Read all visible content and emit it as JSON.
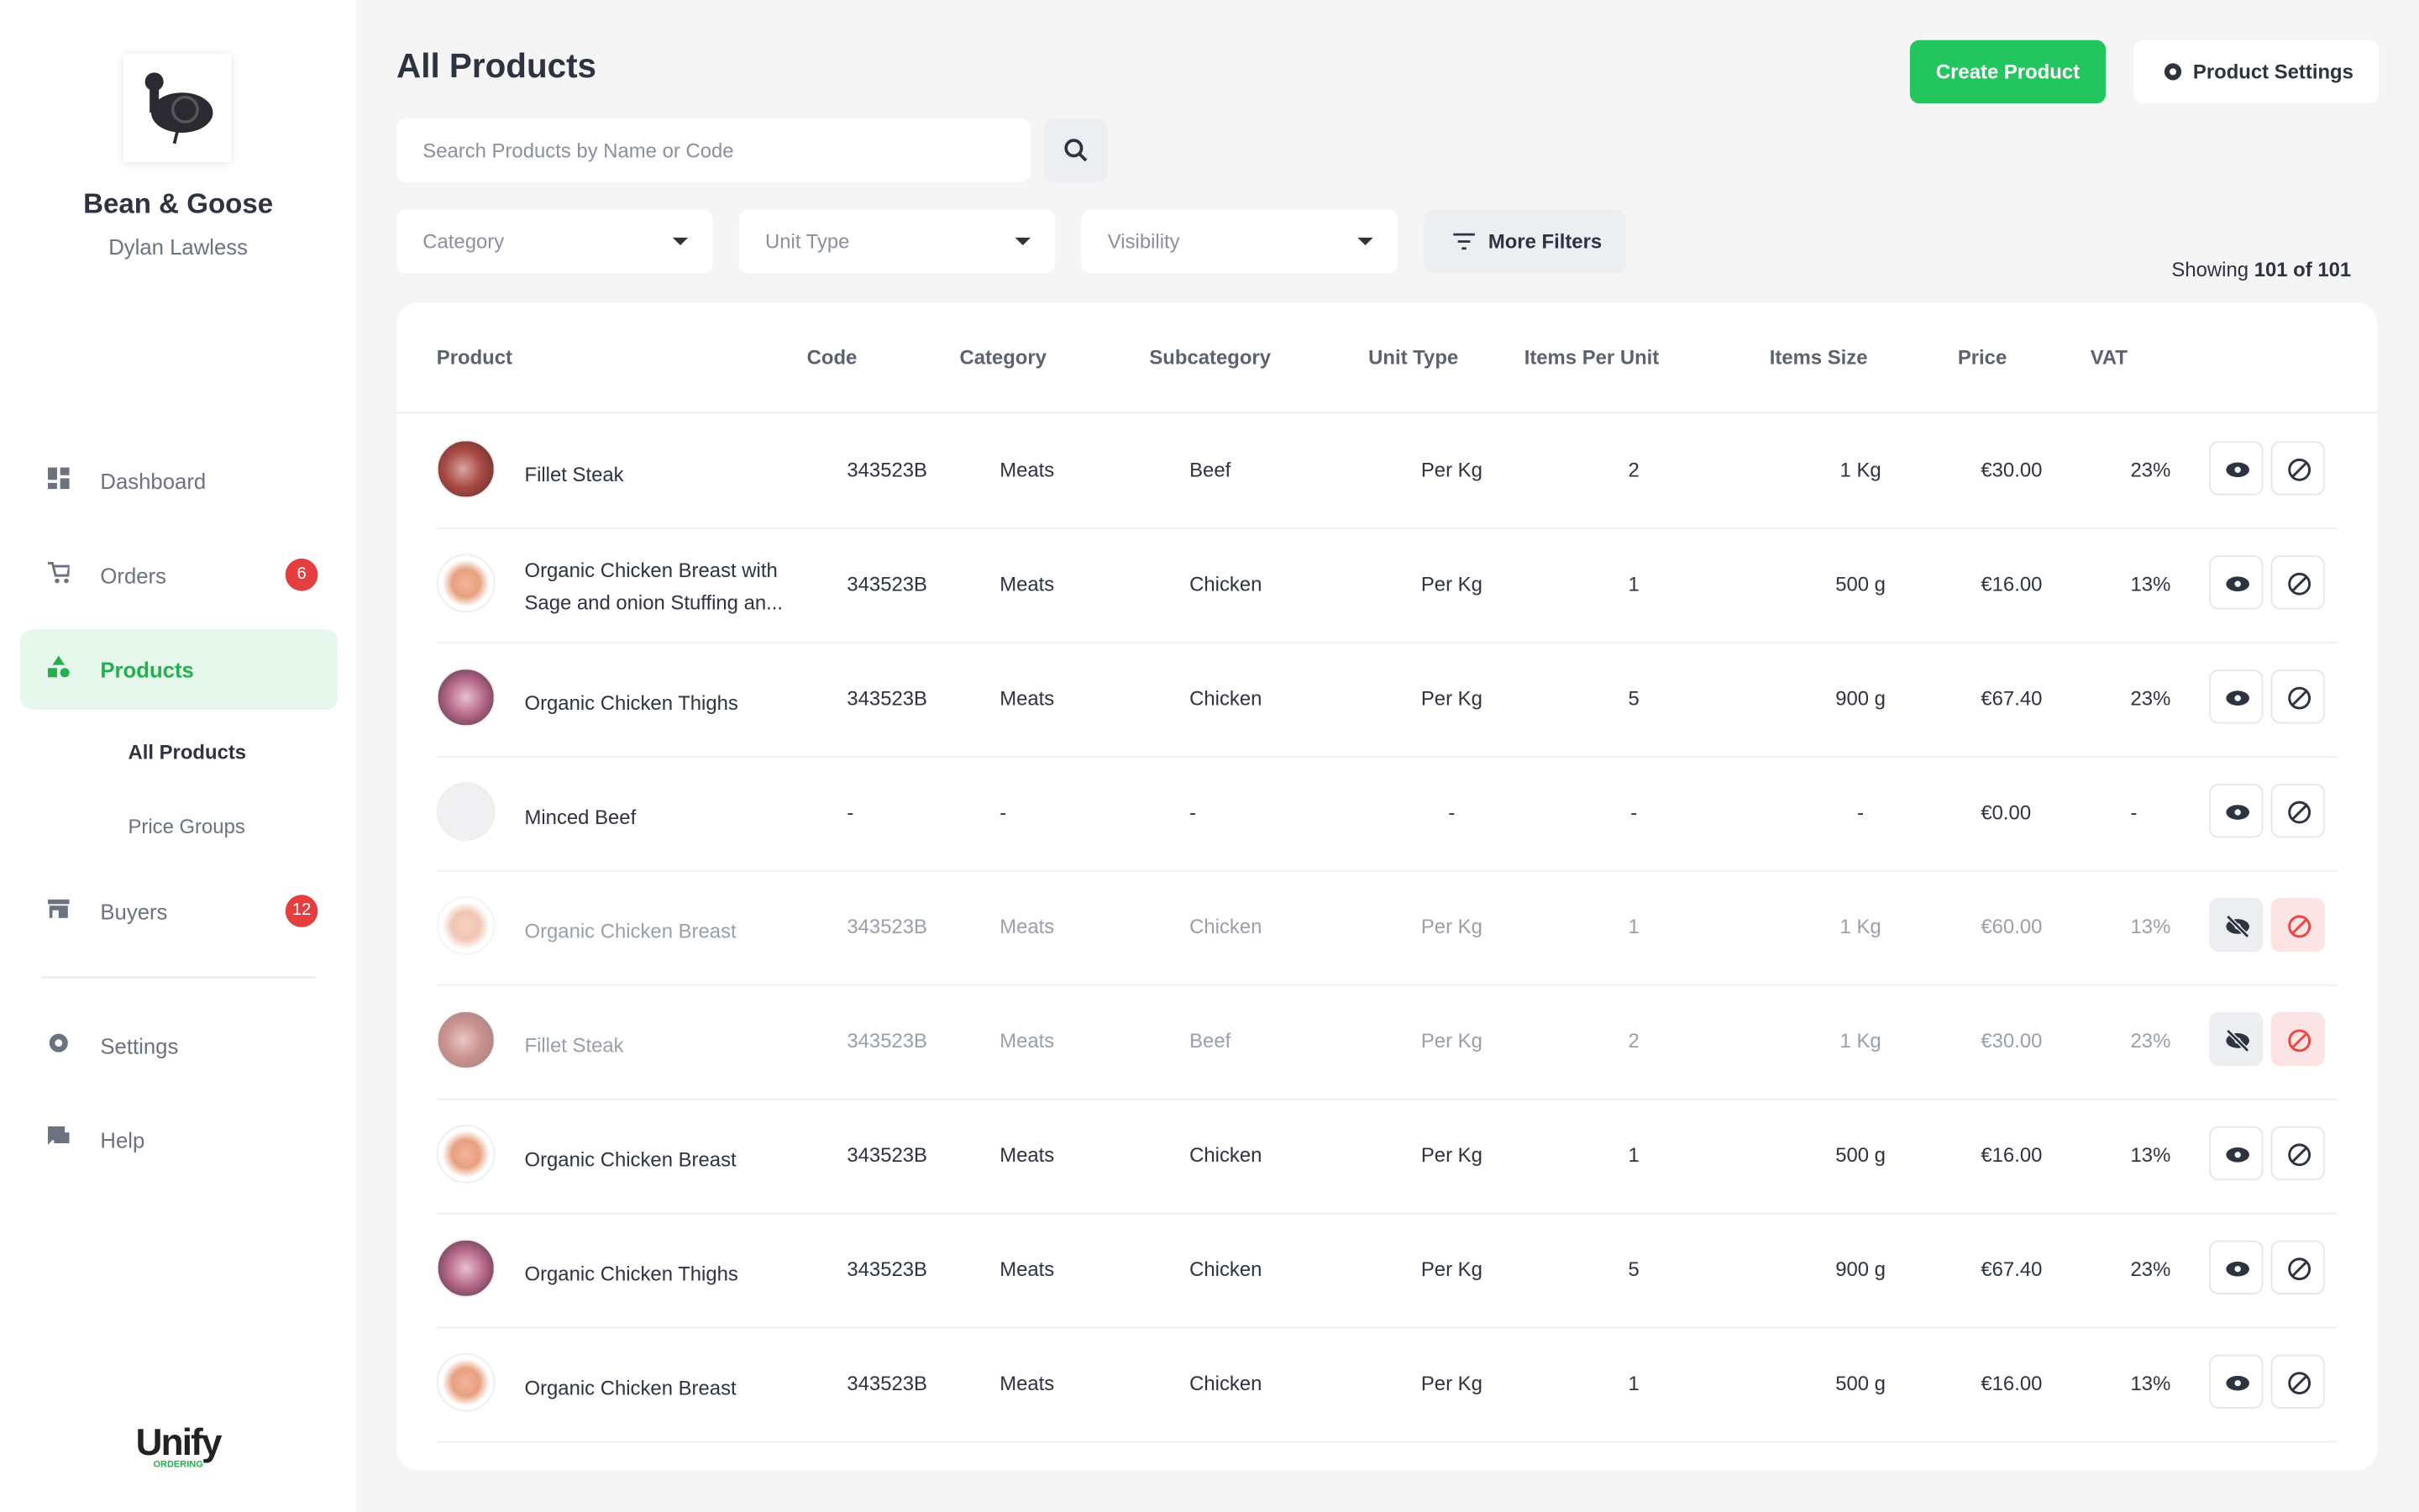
{
  "sidebar": {
    "brand": "Bean & Goose",
    "user": "Dylan Lawless",
    "nav": [
      {
        "label": "Dashboard"
      },
      {
        "label": "Orders",
        "badge": "6"
      },
      {
        "label": "Products",
        "active": true
      },
      {
        "label": "Buyers",
        "badge": "12"
      },
      {
        "label": "Settings"
      },
      {
        "label": "Help"
      }
    ],
    "subnav": [
      {
        "label": "All Products",
        "active": true
      },
      {
        "label": "Price Groups"
      }
    ],
    "footer_logo": "Unify",
    "footer_logo_sub": "ORDERING"
  },
  "header": {
    "title": "All Products",
    "create_button": "Create Product",
    "settings_button": "Product Settings"
  },
  "search": {
    "placeholder": "Search Products by Name or Code"
  },
  "filters": {
    "dropdowns": [
      "Category",
      "Unit Type",
      "Visibility"
    ],
    "more": "More Filters"
  },
  "showing": {
    "prefix": "Showing",
    "count": "101 of 101"
  },
  "table": {
    "columns": [
      "Product",
      "Code",
      "Category",
      "Subcategory",
      "Unit Type",
      "Items Per Unit",
      "Items Size",
      "Price",
      "VAT"
    ],
    "rows": [
      {
        "name": "Fillet Steak",
        "code": "343523B",
        "category": "Meats",
        "subcategory": "Beef",
        "unit_type": "Per Kg",
        "items_per_unit": "2",
        "items_size": "1 Kg",
        "price": "€30.00",
        "vat": "23%",
        "visible": true
      },
      {
        "name": "Organic Chicken Breast with Sage and onion Stuffing an...",
        "code": "343523B",
        "category": "Meats",
        "subcategory": "Chicken",
        "unit_type": "Per Kg",
        "items_per_unit": "1",
        "items_size": "500 g",
        "price": "€16.00",
        "vat": "13%",
        "visible": true
      },
      {
        "name": "Organic Chicken Thighs",
        "code": "343523B",
        "category": "Meats",
        "subcategory": "Chicken",
        "unit_type": "Per Kg",
        "items_per_unit": "5",
        "items_size": "900 g",
        "price": "€67.40",
        "vat": "23%",
        "visible": true
      },
      {
        "name": "Minced Beef",
        "code": "-",
        "category": "-",
        "subcategory": "-",
        "unit_type": "-",
        "items_per_unit": "-",
        "items_size": "-",
        "price": "€0.00",
        "vat": "-",
        "visible": true
      },
      {
        "name": "Organic Chicken Breast",
        "code": "343523B",
        "category": "Meats",
        "subcategory": "Chicken",
        "unit_type": "Per Kg",
        "items_per_unit": "1",
        "items_size": "1 Kg",
        "price": "€60.00",
        "vat": "13%",
        "visible": false
      },
      {
        "name": "Fillet Steak",
        "code": "343523B",
        "category": "Meats",
        "subcategory": "Beef",
        "unit_type": "Per Kg",
        "items_per_unit": "2",
        "items_size": "1 Kg",
        "price": "€30.00",
        "vat": "23%",
        "visible": false
      },
      {
        "name": "Organic Chicken Breast",
        "code": "343523B",
        "category": "Meats",
        "subcategory": "Chicken",
        "unit_type": "Per Kg",
        "items_per_unit": "1",
        "items_size": "500 g",
        "price": "€16.00",
        "vat": "13%",
        "visible": true
      },
      {
        "name": "Organic Chicken Thighs",
        "code": "343523B",
        "category": "Meats",
        "subcategory": "Chicken",
        "unit_type": "Per Kg",
        "items_per_unit": "5",
        "items_size": "900 g",
        "price": "€67.40",
        "vat": "23%",
        "visible": true
      },
      {
        "name": "Organic Chicken Breast",
        "code": "343523B",
        "category": "Meats",
        "subcategory": "Chicken",
        "unit_type": "Per Kg",
        "items_per_unit": "1",
        "items_size": "500 g",
        "price": "€16.00",
        "vat": "13%",
        "visible": true
      }
    ]
  }
}
